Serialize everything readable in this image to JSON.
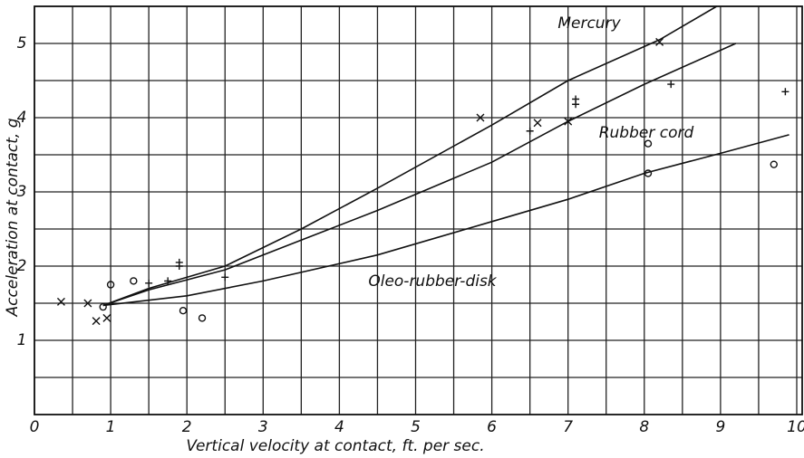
{
  "chart_data": {
    "type": "line",
    "xlabel": "Vertical velocity at contact, ft. per sec.",
    "ylabel": "Acceleration at contact, g",
    "xlim": [
      0,
      10
    ],
    "ylim": [
      0,
      5.5
    ],
    "xticks": [
      0,
      1,
      2,
      3,
      4,
      5,
      6,
      7,
      8,
      9,
      10
    ],
    "yticks": [
      1,
      2,
      3,
      4,
      5
    ],
    "xminor": [
      0.5,
      1.5,
      2.5,
      3.5,
      4.5,
      5.5,
      6.5,
      7.5,
      8.5,
      9.5
    ],
    "yminor": [
      0.5,
      1.5,
      2.5,
      3.5,
      4.5,
      5.5
    ],
    "grid": true,
    "series": [
      {
        "name": "Mercury",
        "color": "#111111",
        "x": [
          0.9,
          1.5,
          2.5,
          3.5,
          4.5,
          6,
          7,
          8.2,
          8.95
        ],
        "values": [
          1.47,
          1.7,
          2.0,
          2.5,
          3.05,
          3.9,
          4.5,
          5.05,
          5.5
        ]
      },
      {
        "name": "Rubber cord",
        "color": "#111111",
        "x": [
          0.9,
          1.5,
          2.5,
          3.5,
          4.5,
          6,
          7,
          8,
          9.2
        ],
        "values": [
          1.47,
          1.68,
          1.95,
          2.35,
          2.75,
          3.4,
          3.95,
          4.45,
          5.0
        ]
      },
      {
        "name": "Oleo-rubber-disk",
        "color": "#111111",
        "x": [
          0.9,
          2,
          3,
          4.5,
          6,
          7,
          8,
          9,
          9.9
        ],
        "values": [
          1.47,
          1.6,
          1.8,
          2.15,
          2.6,
          2.9,
          3.25,
          3.52,
          3.77
        ]
      }
    ],
    "observations": [
      {
        "marker": "x",
        "x": [
          0.35,
          0.7,
          0.81,
          0.95,
          5.85,
          6.6,
          7.0,
          8.2
        ],
        "values": [
          1.52,
          1.5,
          1.26,
          1.3,
          4.0,
          3.93,
          3.95,
          5.02
        ]
      },
      {
        "marker": "+",
        "x": [
          1.5,
          1.75,
          1.9,
          1.9,
          2.5,
          6.5,
          7.1,
          7.1,
          8.35,
          9.85
        ],
        "values": [
          1.77,
          1.8,
          2.05,
          2.0,
          1.85,
          3.82,
          4.25,
          4.18,
          4.45,
          4.35
        ]
      },
      {
        "marker": "o",
        "x": [
          0.9,
          1.0,
          1.3,
          1.95,
          2.2,
          8.05,
          8.05,
          9.7
        ],
        "values": [
          1.45,
          1.75,
          1.8,
          1.4,
          1.3,
          3.65,
          3.25,
          3.37
        ]
      }
    ]
  }
}
